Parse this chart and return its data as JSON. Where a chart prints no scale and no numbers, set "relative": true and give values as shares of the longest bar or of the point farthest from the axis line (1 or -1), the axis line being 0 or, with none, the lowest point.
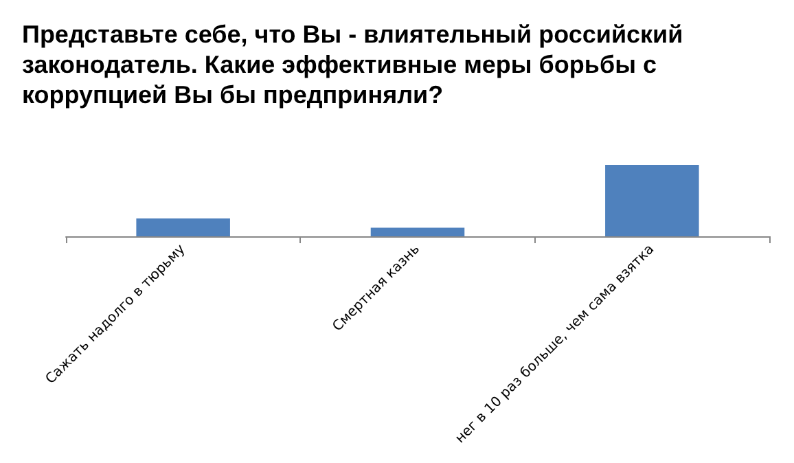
{
  "chart_data": {
    "type": "bar",
    "title": "Представьте себе, что Вы - влиятельный российский законодатель. Какие эффективные меры борьбы с коррупцией Вы бы предприняли?",
    "categories": [
      "Сажать надолго в тюрьму",
      "Смертная казнь",
      "нег в 10 раз больше, чем сама взятка"
    ],
    "values": [
      0.25,
      0.12,
      1
    ],
    "color": "#4f81bd",
    "relative": true
  }
}
